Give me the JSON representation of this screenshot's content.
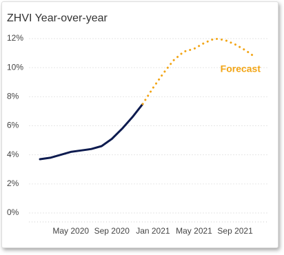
{
  "chart_data": {
    "type": "line",
    "title": "ZHVI Year-over-year",
    "x": [
      "Feb 2020",
      "Mar 2020",
      "Apr 2020",
      "May 2020",
      "Jun 2020",
      "Jul 2020",
      "Aug 2020",
      "Sep 2020",
      "Oct 2020",
      "Nov 2020",
      "Dec 2020",
      "Jan 2021",
      "Feb 2021",
      "Mar 2021",
      "Apr 2021",
      "May 2021",
      "Jun 2021",
      "Jul 2021",
      "Aug 2021",
      "Sep 2021",
      "Oct 2021",
      "Nov 2021"
    ],
    "xticks": [
      "May 2020",
      "Sep 2020",
      "Jan 2021",
      "May 2021",
      "Sep 2021"
    ],
    "series": [
      {
        "color": "#0d1b4f",
        "style": "solid",
        "values": [
          3.7,
          3.8,
          4.0,
          4.2,
          4.3,
          4.4,
          4.6,
          5.1,
          5.8,
          6.6,
          7.5,
          null,
          null,
          null,
          null,
          null,
          null,
          null,
          null,
          null,
          null,
          null
        ]
      },
      {
        "name": "Forecast",
        "color": "#f2a516",
        "style": "dotted",
        "values": [
          null,
          null,
          null,
          null,
          null,
          null,
          null,
          null,
          null,
          null,
          7.5,
          8.6,
          9.6,
          10.5,
          11.1,
          11.3,
          11.7,
          12.0,
          11.9,
          11.6,
          11.2,
          10.7
        ]
      }
    ],
    "ylim": [
      0,
      12
    ],
    "yticks": [
      {
        "value": 0,
        "label": "0%"
      },
      {
        "value": 2,
        "label": "2%"
      },
      {
        "value": 4,
        "label": "4%"
      },
      {
        "value": 6,
        "label": "6%"
      },
      {
        "value": 8,
        "label": "8%"
      },
      {
        "value": 10,
        "label": "10%"
      },
      {
        "value": 12,
        "label": "12%"
      }
    ],
    "grid": true
  }
}
